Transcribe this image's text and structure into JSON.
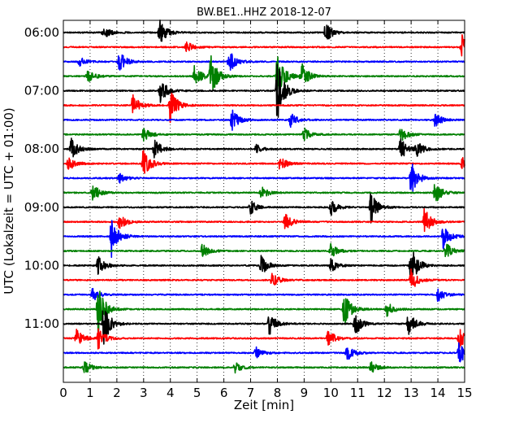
{
  "chart_data": {
    "type": "line",
    "subtype": "dayplot",
    "title": "BW.BE1..HHZ 2018-12-07",
    "xlabel": "Zeit  [min]",
    "ylabel": "UTC (Lokalzeit = UTC + 01:00)",
    "xlim": [
      0,
      15
    ],
    "x_ticks": [
      "0",
      "1",
      "2",
      "3",
      "4",
      "5",
      "6",
      "7",
      "8",
      "9",
      "10",
      "11",
      "12",
      "13",
      "14",
      "15"
    ],
    "y_ticks": [
      "06:00",
      "07:00",
      "08:00",
      "09:00",
      "10:00",
      "11:00"
    ],
    "grid": "vertical dotted",
    "row_interval_minutes": 15,
    "start_time": "06:00",
    "end_time": "12:00",
    "colors": [
      "#000000",
      "#ff0000",
      "#0000ff",
      "#008000"
    ],
    "events": [
      [
        [
          3.6,
          0.55
        ],
        [
          9.8,
          0.45
        ],
        [
          1.5,
          0.3
        ]
      ],
      [
        [
          14.9,
          0.55
        ],
        [
          4.6,
          0.25
        ]
      ],
      [
        [
          2.1,
          0.45
        ],
        [
          6.2,
          0.5
        ],
        [
          0.6,
          0.2
        ]
      ],
      [
        [
          5.5,
          1.0
        ],
        [
          8.0,
          1.2
        ],
        [
          8.9,
          0.6
        ],
        [
          4.9,
          0.5
        ],
        [
          0.9,
          0.3
        ]
      ],
      [
        [
          3.6,
          0.65
        ],
        [
          8.0,
          1.5
        ]
      ],
      [
        [
          2.6,
          0.5
        ],
        [
          4.0,
          0.75
        ]
      ],
      [
        [
          6.3,
          0.5
        ],
        [
          8.5,
          0.3
        ],
        [
          13.9,
          0.3
        ]
      ],
      [
        [
          3.0,
          0.35
        ],
        [
          9.0,
          0.3
        ],
        [
          12.6,
          0.35
        ]
      ],
      [
        [
          0.3,
          0.5
        ],
        [
          3.4,
          0.5
        ],
        [
          12.6,
          0.5
        ],
        [
          13.2,
          0.35
        ],
        [
          7.2,
          0.2
        ]
      ],
      [
        [
          0.2,
          0.35
        ],
        [
          3.0,
          0.7
        ],
        [
          8.1,
          0.3
        ],
        [
          14.9,
          0.35
        ]
      ],
      [
        [
          13.0,
          0.75
        ],
        [
          2.1,
          0.2
        ]
      ],
      [
        [
          1.1,
          0.4
        ],
        [
          7.4,
          0.3
        ],
        [
          13.9,
          0.5
        ]
      ],
      [
        [
          11.5,
          0.7
        ],
        [
          10.0,
          0.35
        ],
        [
          7.0,
          0.3
        ]
      ],
      [
        [
          2.1,
          0.35
        ],
        [
          8.3,
          0.4
        ],
        [
          13.5,
          0.6
        ]
      ],
      [
        [
          1.8,
          0.9
        ],
        [
          14.2,
          0.55
        ]
      ],
      [
        [
          5.2,
          0.3
        ],
        [
          10.0,
          0.3
        ],
        [
          14.3,
          0.35
        ]
      ],
      [
        [
          1.3,
          0.4
        ],
        [
          7.4,
          0.45
        ],
        [
          13.0,
          0.95
        ],
        [
          10.0,
          0.3
        ]
      ],
      [
        [
          7.8,
          0.35
        ],
        [
          13.0,
          0.5
        ]
      ],
      [
        [
          1.1,
          0.3
        ],
        [
          14.0,
          0.3
        ]
      ],
      [
        [
          1.3,
          1.1
        ],
        [
          10.5,
          0.75
        ],
        [
          12.1,
          0.35
        ]
      ],
      [
        [
          1.5,
          0.95
        ],
        [
          7.7,
          0.5
        ],
        [
          10.9,
          0.55
        ],
        [
          12.9,
          0.55
        ]
      ],
      [
        [
          0.5,
          0.4
        ],
        [
          1.3,
          0.5
        ],
        [
          9.9,
          0.4
        ],
        [
          14.8,
          0.45
        ]
      ],
      [
        [
          7.2,
          0.25
        ],
        [
          10.6,
          0.35
        ],
        [
          14.8,
          0.55
        ]
      ],
      [
        [
          0.8,
          0.3
        ],
        [
          6.4,
          0.25
        ],
        [
          11.5,
          0.25
        ]
      ]
    ]
  }
}
